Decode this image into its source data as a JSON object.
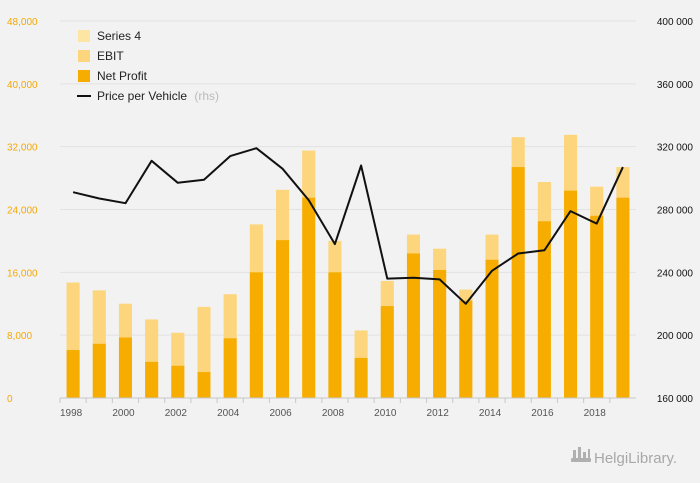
{
  "colors": {
    "background": "#f2f2f2",
    "grid": "#e2e2e2",
    "series4": "#fde5a4",
    "ebit": "#fcd57c",
    "net_profit": "#f6ad00",
    "price_line": "#111111",
    "left_axis_text": "#f5a800",
    "right_axis_text": "#111111"
  },
  "legend": {
    "items": [
      {
        "label": "Series 4",
        "suffix": "",
        "kind": "box",
        "color": "#fde5a4"
      },
      {
        "label": "EBIT",
        "suffix": "",
        "kind": "box",
        "color": "#fcd57c"
      },
      {
        "label": "Net Profit",
        "suffix": "",
        "kind": "box",
        "color": "#f6ad00"
      },
      {
        "label": "Price per Vehicle",
        "suffix": "(rhs)",
        "kind": "line",
        "color": "#111111"
      }
    ]
  },
  "watermark": {
    "text": "HelgiLibrary."
  },
  "chart_data": {
    "type": "bar",
    "title": "",
    "xlabel": "",
    "ylabel": "",
    "ylim": [
      0,
      48000
    ],
    "y2lim": [
      160000,
      400000
    ],
    "y_ticks": [
      0,
      8000,
      16000,
      24000,
      32000,
      40000,
      48000
    ],
    "y_tick_labels": [
      "0",
      "8,000",
      "16,000",
      "24,000",
      "32,000",
      "40,000",
      "48,000"
    ],
    "y2_ticks": [
      160000,
      200000,
      240000,
      280000,
      320000,
      360000,
      400000
    ],
    "y2_tick_labels": [
      "160 000",
      "200 000",
      "240 000",
      "280 000",
      "320 000",
      "360 000",
      "400 000"
    ],
    "x_tick_labels": [
      "1998",
      "2000",
      "2002",
      "2004",
      "2006",
      "2008",
      "2010",
      "2012",
      "2014",
      "2016",
      "2018"
    ],
    "categories": [
      "1998",
      "1999",
      "2000",
      "2001",
      "2002",
      "2003",
      "2004",
      "2005",
      "2006",
      "2007",
      "2008",
      "2009",
      "2010",
      "2011",
      "2012",
      "2013",
      "2014",
      "2015",
      "2016",
      "2017",
      "2018",
      "2019"
    ],
    "grid": true,
    "legend_position": "top-left",
    "series": [
      {
        "name": "Net Profit",
        "type": "bar",
        "axis": "left",
        "values": [
          6100,
          6900,
          7700,
          4600,
          4100,
          3300,
          7600,
          16000,
          20100,
          25500,
          16000,
          5100,
          11700,
          18400,
          16300,
          12400,
          17600,
          29400,
          22500,
          26400,
          23200,
          25500
        ]
      },
      {
        "name": "EBIT",
        "type": "bar",
        "axis": "left",
        "values": [
          14700,
          13700,
          12000,
          10000,
          8300,
          11600,
          13200,
          22100,
          26500,
          31500,
          20000,
          8600,
          14900,
          20800,
          19000,
          13800,
          20800,
          33200,
          27500,
          33500,
          26900,
          29400
        ]
      },
      {
        "name": "Series 4",
        "type": "bar",
        "axis": "left",
        "values": [
          14700,
          13700,
          12000,
          10000,
          8300,
          11600,
          13200,
          22100,
          26500,
          31500,
          20000,
          8600,
          14900,
          20800,
          19000,
          13800,
          20800,
          33200,
          27500,
          33500,
          26900,
          29400
        ]
      },
      {
        "name": "Price per Vehicle",
        "type": "line",
        "axis": "right",
        "values": [
          291000,
          287000,
          284000,
          311000,
          297000,
          299000,
          314000,
          319000,
          306000,
          286000,
          258000,
          308000,
          236000,
          236500,
          235500,
          220000,
          241000,
          252000,
          254000,
          279000,
          271000,
          307000
        ]
      }
    ]
  }
}
